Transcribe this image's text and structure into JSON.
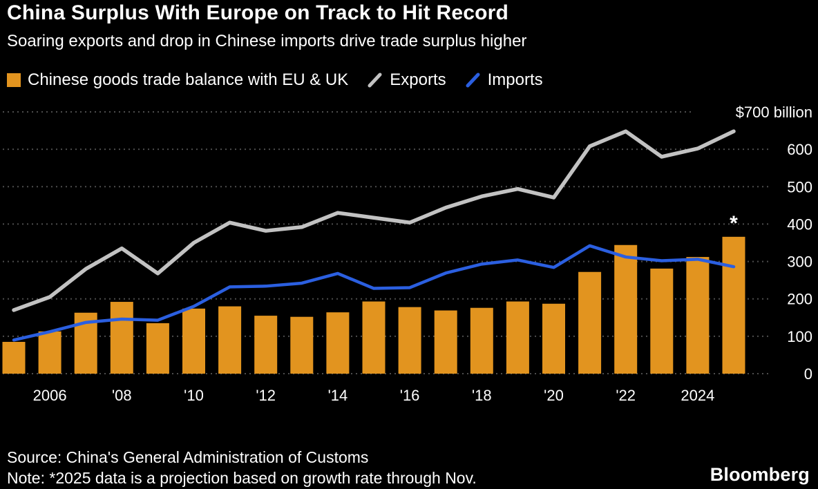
{
  "header": {
    "title": "China Surplus With Europe on Track to Hit Record",
    "subtitle": "Soaring exports and drop in Chinese imports drive trade surplus higher"
  },
  "legend": {
    "balance": {
      "label": "Chinese goods trade balance with EU & UK",
      "color": "#E2941F"
    },
    "exports": {
      "label": "Exports",
      "color": "#C2C2C2"
    },
    "imports": {
      "label": "Imports",
      "color": "#2B5FE0"
    }
  },
  "chart_data": {
    "type": "bar",
    "x": [
      2005,
      2006,
      2007,
      2008,
      2009,
      2010,
      2011,
      2012,
      2013,
      2014,
      2015,
      2016,
      2017,
      2018,
      2019,
      2020,
      2021,
      2022,
      2023,
      2024,
      2025
    ],
    "series": [
      {
        "name": "Chinese goods trade balance with EU & UK",
        "type": "bar",
        "color": "#E2941F",
        "values": [
          85,
          113,
          163,
          192,
          135,
          174,
          180,
          155,
          152,
          164,
          193,
          178,
          169,
          176,
          193,
          187,
          272,
          344,
          281,
          312,
          366
        ]
      },
      {
        "name": "Exports",
        "type": "line",
        "color": "#C2C2C2",
        "values": [
          170,
          205,
          280,
          335,
          268,
          350,
          404,
          382,
          392,
          430,
          417,
          404,
          444,
          474,
          494,
          471,
          608,
          648,
          580,
          602,
          648
        ]
      },
      {
        "name": "Imports",
        "type": "line",
        "color": "#2B5FE0",
        "values": [
          90,
          112,
          137,
          146,
          143,
          180,
          232,
          234,
          242,
          268,
          228,
          230,
          269,
          293,
          304,
          284,
          342,
          312,
          302,
          306,
          286
        ]
      }
    ],
    "title": "China Surplus With Europe on Track to Hit Record",
    "xlabel": "",
    "ylabel": "$ billion",
    "ylim": [
      0,
      700
    ],
    "ytick_step": 100,
    "ytick_top_label": "$700 billion",
    "xticks": [
      {
        "x": 2006,
        "label": "2006"
      },
      {
        "x": 2008,
        "label": "'08"
      },
      {
        "x": 2010,
        "label": "'10"
      },
      {
        "x": 2012,
        "label": "'12"
      },
      {
        "x": 2014,
        "label": "'14"
      },
      {
        "x": 2016,
        "label": "'16"
      },
      {
        "x": 2018,
        "label": "'18"
      },
      {
        "x": 2020,
        "label": "'20"
      },
      {
        "x": 2022,
        "label": "'22"
      },
      {
        "x": 2024,
        "label": "2024"
      }
    ],
    "annotation": {
      "x": 2025,
      "label": "*"
    },
    "grid": "horizontal dotted",
    "legend_position": "top"
  },
  "footer": {
    "source": "Source: China's General Administration of Customs",
    "note": "Note: *2025 data is a projection based on growth rate through Nov.",
    "logo": "Bloomberg"
  },
  "colors": {
    "background": "#000000",
    "bar": "#E2941F",
    "exports_line": "#C2C2C2",
    "imports_line": "#2B5FE0",
    "grid": "#4E4E4E",
    "text": "#FFFFFF"
  }
}
